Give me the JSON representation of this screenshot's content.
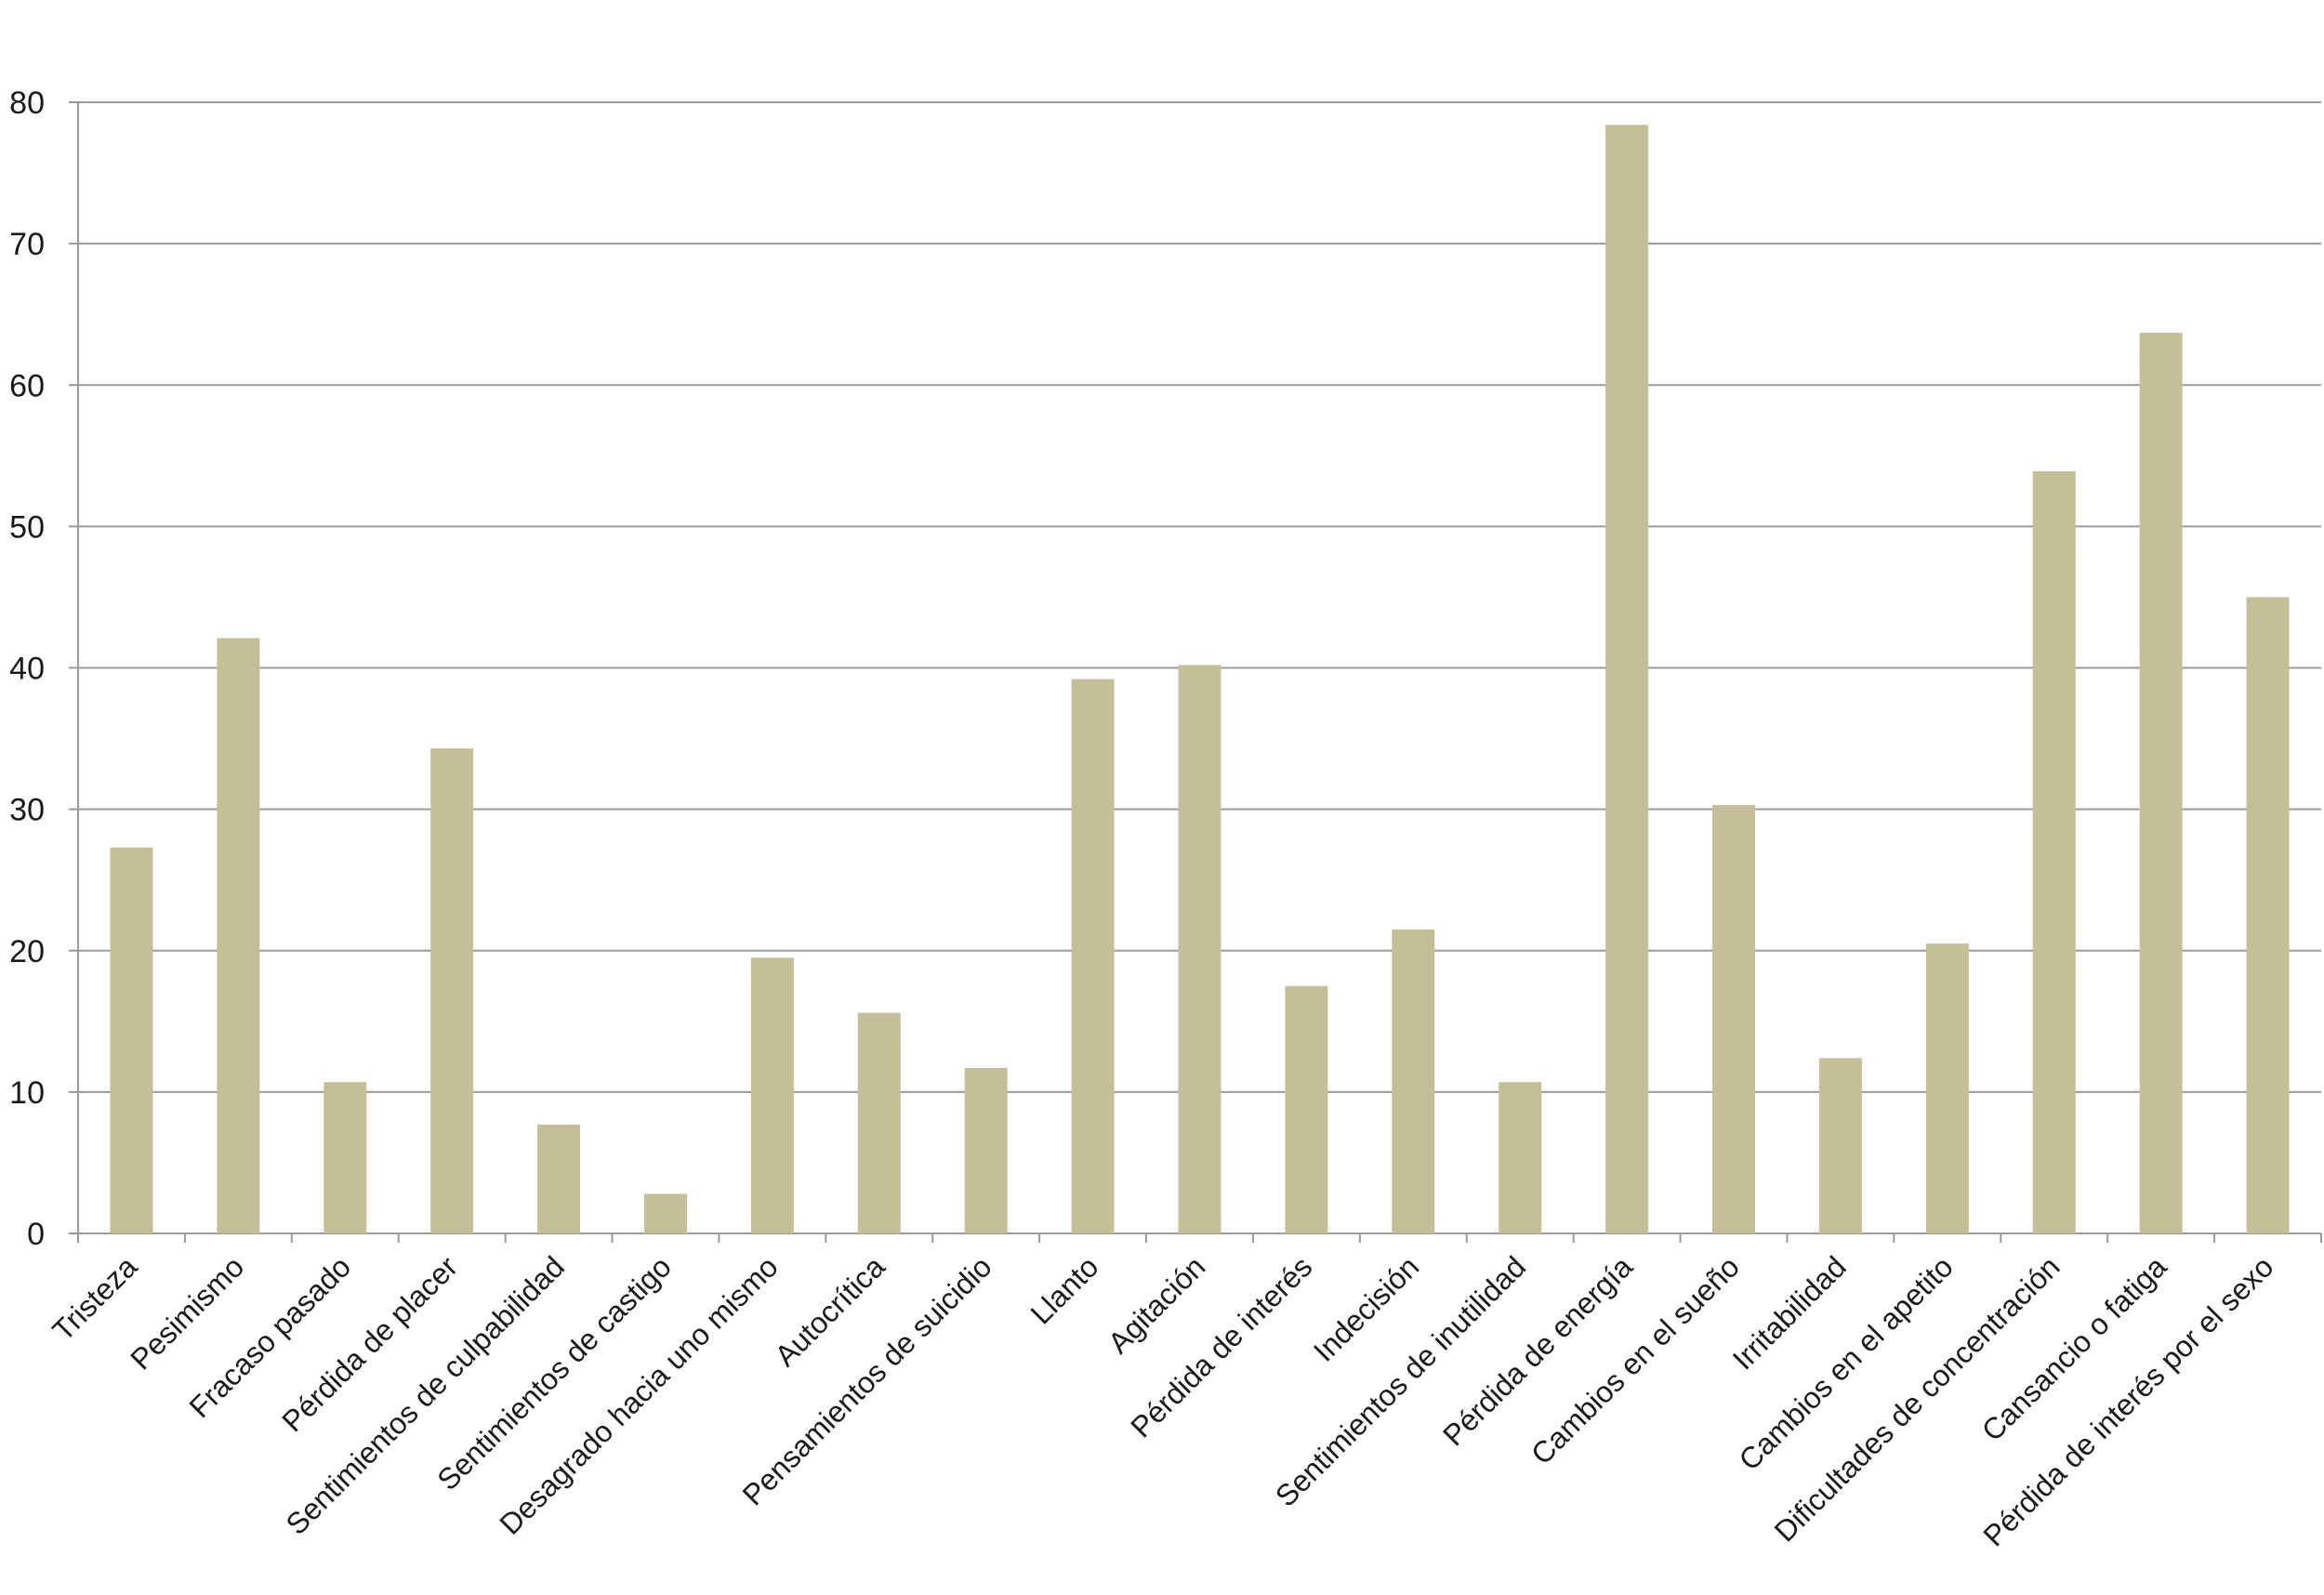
{
  "chart_data": {
    "type": "bar",
    "title": "",
    "xlabel": "",
    "ylabel": "",
    "ylim": [
      0,
      80
    ],
    "yticks": [
      0,
      10,
      20,
      30,
      40,
      50,
      60,
      70,
      80
    ],
    "grid": true,
    "legend": "none",
    "colors": {
      "bar": "#c5bf98",
      "grid": "#9a9a9a",
      "axis": "#9a9a9a",
      "text": "#1a1a1a"
    },
    "categories": [
      "Tristeza",
      "Pesimismo",
      "Fracaso pasado",
      "Pérdida de placer",
      "Sentimientos de culpabilidad",
      "Sentimientos de castigo",
      "Desagrado hacia uno mismo",
      "Autocrítica",
      "Pensamientos de suicidio",
      "Llanto",
      "Agitación",
      "Pérdida de interés",
      "Indecisión",
      "Sentimientos de inutilidad",
      "Pérdida de energía",
      "Cambios en el sueño",
      "Irritabilidad",
      "Cambios en el apetito",
      "Dificultades de concentración",
      "Cansancio o fatiga",
      "Pérdida de interés por el sexo"
    ],
    "values": [
      27.3,
      42.1,
      10.7,
      34.3,
      7.7,
      2.8,
      19.5,
      15.6,
      11.7,
      39.2,
      40.2,
      17.5,
      21.5,
      10.7,
      78.4,
      30.3,
      12.4,
      20.5,
      53.9,
      63.7,
      45.0
    ]
  }
}
